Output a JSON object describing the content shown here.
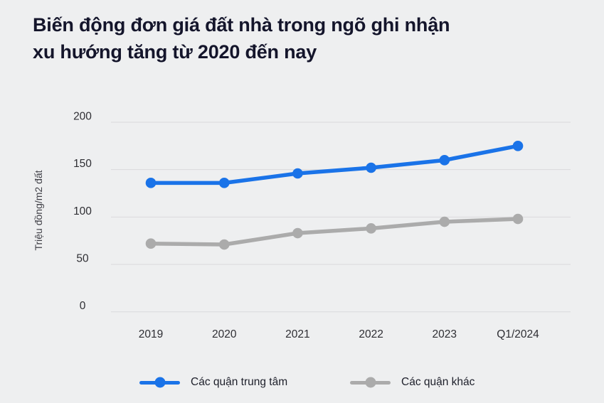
{
  "header": {
    "title_line1": "Biến động đơn giá đất nhà trong ngõ ghi nhận",
    "title_line2": "xu hướng tăng từ 2020 đến nay"
  },
  "colors": {
    "background": "#eeeff0",
    "title_text": "#14152b",
    "gridline": "#d9dadc",
    "axis_text": "#2e2e33",
    "primary_series": "#1a73e8",
    "secondary_series": "#ababab"
  },
  "chart_data": {
    "type": "line",
    "title": "Biến động đơn giá đất nhà trong ngõ ghi nhận xu hướng tăng từ 2020 đến nay",
    "ylabel": "Triệu đồng/m2 đất",
    "xlabel": "",
    "categories": [
      "2019",
      "2020",
      "2021",
      "2022",
      "2023",
      "Q1/2024"
    ],
    "series": [
      {
        "name": "Các quận trung tâm",
        "color": "#1a73e8",
        "values": [
          136,
          136,
          146,
          152,
          160,
          175
        ]
      },
      {
        "name": "Các quận khác",
        "color": "#ababab",
        "values": [
          72,
          71,
          83,
          88,
          95,
          98
        ]
      }
    ],
    "ylim": [
      0,
      200
    ],
    "yticks": [
      0,
      50,
      100,
      150,
      200
    ],
    "grid": true,
    "legend_position": "bottom"
  }
}
